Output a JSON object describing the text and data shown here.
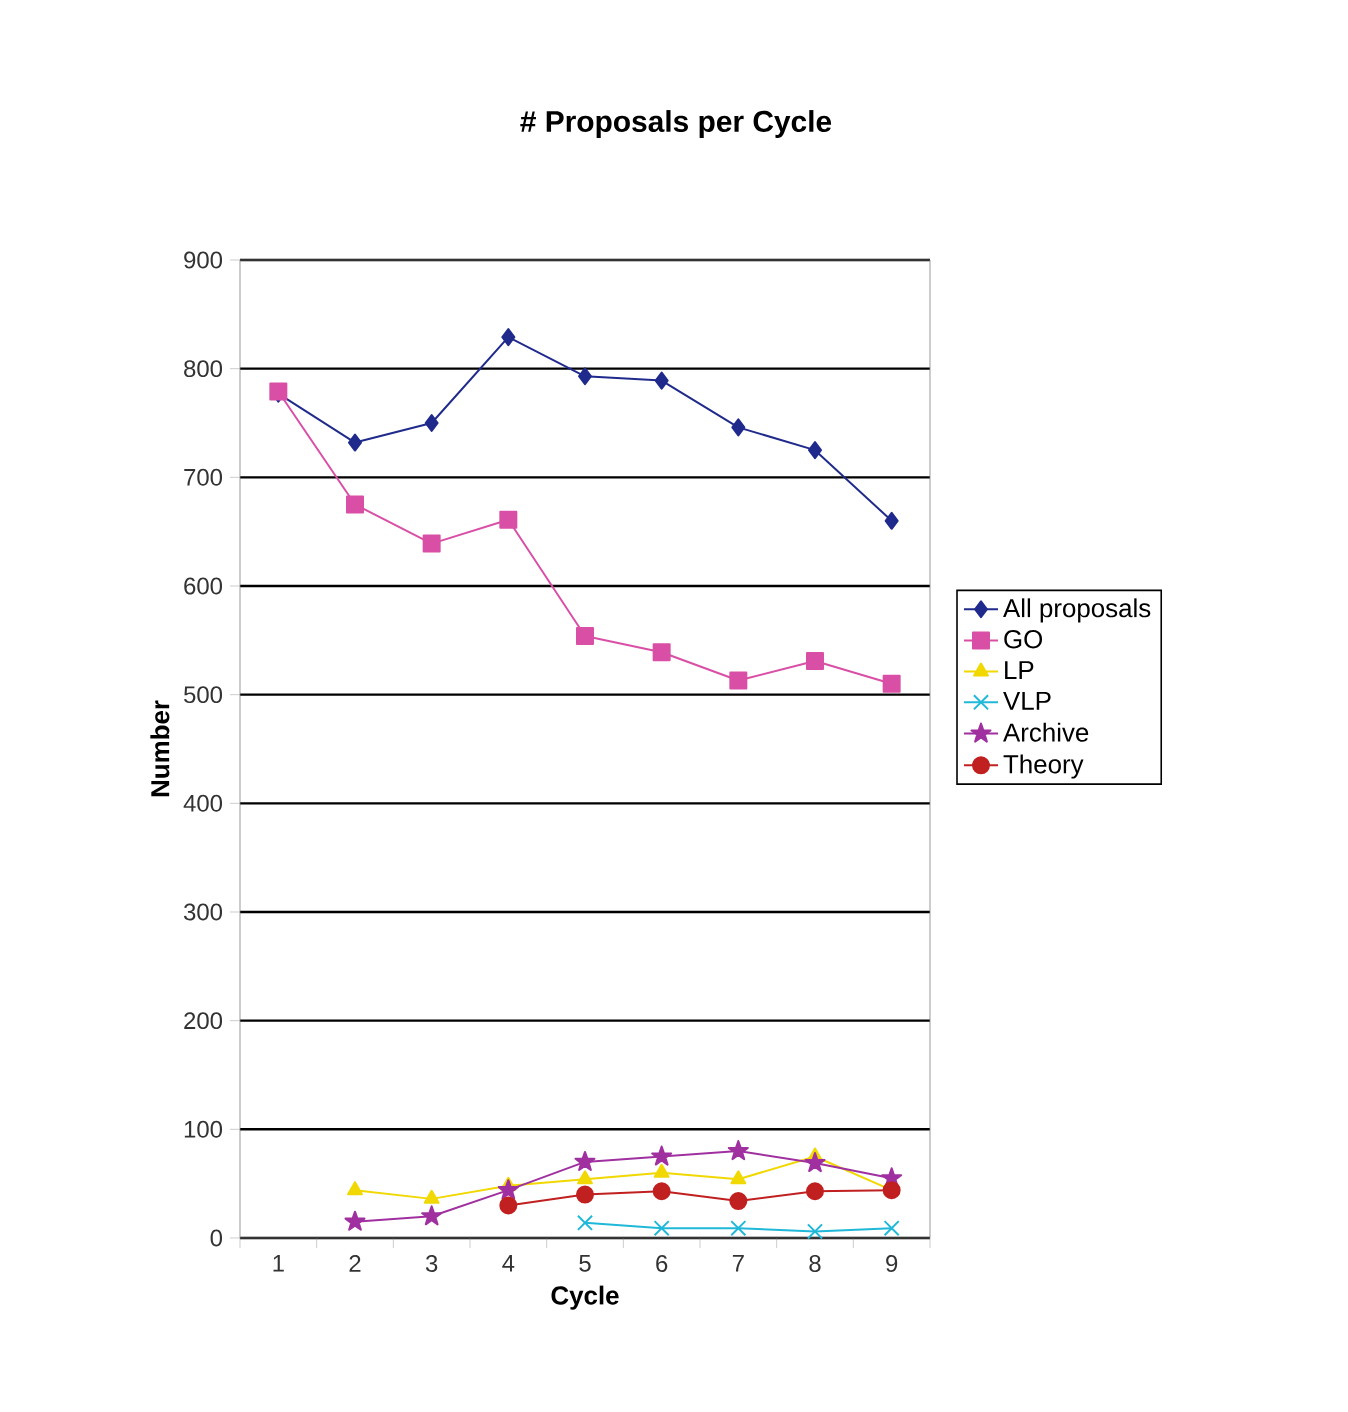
{
  "chart_data": {
    "type": "line",
    "title": "# Proposals per Cycle",
    "xlabel": "Cycle",
    "ylabel": "Number",
    "categories": [
      "1",
      "2",
      "3",
      "4",
      "5",
      "6",
      "7",
      "8",
      "9"
    ],
    "series": [
      {
        "name": "All proposals",
        "color": "#1f2a8c",
        "marker": "diamond",
        "values": [
          777,
          732,
          750,
          829,
          793,
          789,
          746,
          725,
          660
        ]
      },
      {
        "name": "GO",
        "color": "#d94fa6",
        "marker": "square",
        "values": [
          779,
          675,
          639,
          661,
          554,
          539,
          513,
          531,
          510
        ]
      },
      {
        "name": "LP",
        "color": "#f0d800",
        "marker": "triangle",
        "values": [
          null,
          44,
          36,
          48,
          54,
          60,
          54,
          75,
          44
        ]
      },
      {
        "name": "VLP",
        "color": "#20b8d8",
        "marker": "cross",
        "values": [
          null,
          null,
          null,
          null,
          14,
          9,
          9,
          6,
          9
        ]
      },
      {
        "name": "Archive",
        "color": "#a030a0",
        "marker": "star",
        "values": [
          null,
          15,
          20,
          44,
          70,
          75,
          80,
          69,
          55
        ]
      },
      {
        "name": "Theory",
        "color": "#c0201f",
        "marker": "circle",
        "values": [
          null,
          null,
          null,
          30,
          40,
          43,
          34,
          43,
          44
        ]
      }
    ],
    "ylim": [
      0,
      900
    ],
    "yticks": [
      0,
      100,
      200,
      300,
      400,
      500,
      600,
      700,
      800,
      900
    ],
    "grid": "y",
    "legend": "right",
    "line_style": "solid"
  }
}
